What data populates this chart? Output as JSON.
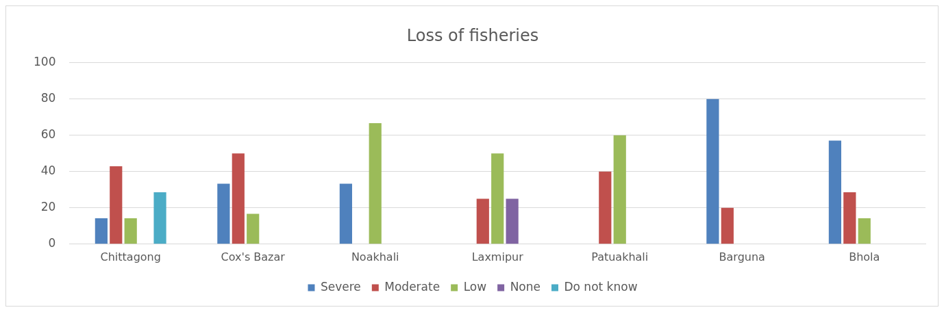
{
  "chart_data": {
    "type": "bar",
    "title": "Loss of fisheries",
    "categories": [
      "Chittagong",
      "Cox's Bazar",
      "Noakhali",
      "Laxmipur",
      "Patuakhali",
      "Barguna",
      "Bhola"
    ],
    "series": [
      {
        "name": "Severe",
        "color": "#4f81bd",
        "values": [
          14.3,
          33.3,
          33.3,
          0,
          0,
          80,
          57.1
        ]
      },
      {
        "name": "Moderate",
        "color": "#c0504d",
        "values": [
          42.9,
          50,
          0,
          25,
          40,
          20,
          28.6
        ]
      },
      {
        "name": "Low",
        "color": "#9bbb59",
        "values": [
          14.3,
          16.7,
          66.7,
          50,
          60,
          0,
          14.3
        ]
      },
      {
        "name": "None",
        "color": "#8064a2",
        "values": [
          0,
          0,
          0,
          25,
          0,
          0,
          0
        ]
      },
      {
        "name": "Do not know",
        "color": "#4bacc6",
        "values": [
          28.6,
          0,
          0,
          0,
          0,
          0,
          0
        ]
      }
    ],
    "ylim": [
      0,
      100
    ],
    "yticks": [
      0,
      20,
      40,
      60,
      80,
      100
    ],
    "grid": "y",
    "legend": "bottom"
  }
}
